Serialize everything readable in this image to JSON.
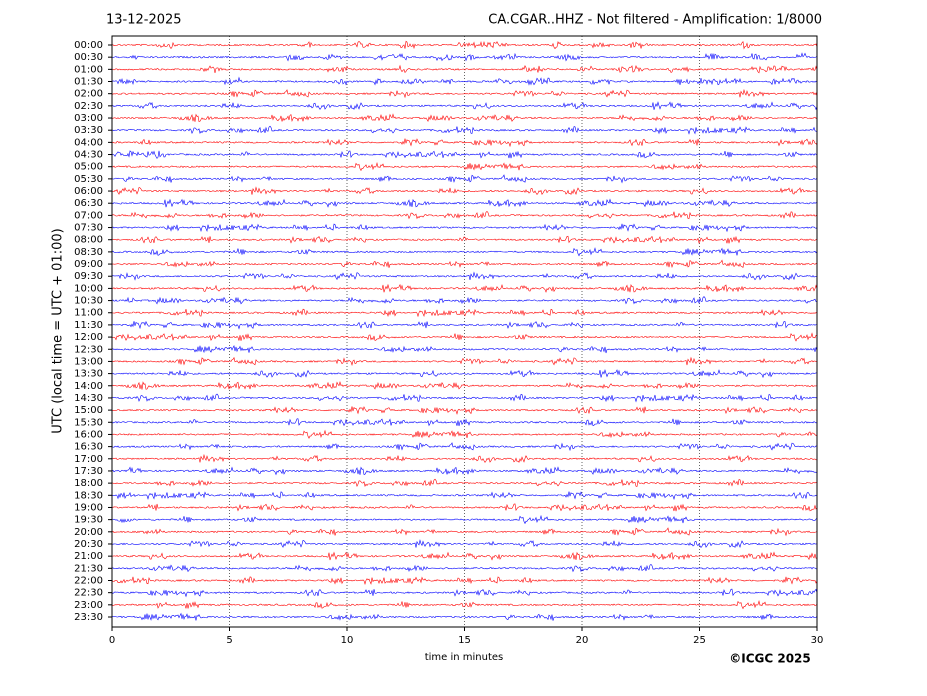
{
  "chart_data": {
    "type": "helicorder",
    "title": "CA.CGAR..HHZ - Not filtered - Amplification: 1/8000",
    "date": "13-12-2025",
    "xlabel": "time in minutes",
    "ylabel": "UTC (local time = UTC + 01:00)",
    "categories": [
      "00:00",
      "00:30",
      "01:00",
      "01:30",
      "02:00",
      "02:30",
      "03:00",
      "03:30",
      "04:00",
      "04:30",
      "05:00",
      "05:30",
      "06:00",
      "06:30",
      "07:00",
      "07:30",
      "08:00",
      "08:30",
      "09:00",
      "09:30",
      "10:00",
      "10:30",
      "11:00",
      "11:30",
      "12:00",
      "12:30",
      "13:00",
      "13:30",
      "14:00",
      "14:30",
      "15:00",
      "15:30",
      "16:00",
      "16:30",
      "17:00",
      "17:30",
      "18:00",
      "18:30",
      "19:00",
      "19:30",
      "20:00",
      "20:30",
      "21:00",
      "21:30",
      "22:00",
      "22:30",
      "23:00",
      "23:30"
    ],
    "colors": [
      "#ff0000",
      "#0000ff"
    ],
    "xlim": [
      0,
      30
    ],
    "xticks": [
      0,
      5,
      10,
      15,
      20,
      25,
      30
    ],
    "grid": true
  },
  "copyright": "©ICGC 2025"
}
